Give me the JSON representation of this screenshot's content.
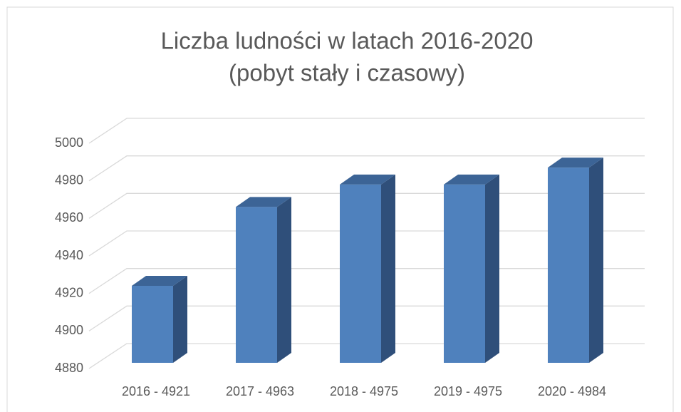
{
  "chart_data": {
    "type": "bar3d",
    "title": [
      "Liczba ludności w latach 2016-2020",
      "(pobyt stały i czasowy)"
    ],
    "categories": [
      "2016 - 4921",
      "2017 - 4963",
      "2018 - 4975",
      "2019 - 4975",
      "2020 - 4984"
    ],
    "values": [
      4921,
      4963,
      4975,
      4975,
      4984
    ],
    "color": "#4f81bd",
    "ylim": [
      4880,
      5000
    ],
    "yticks": [
      4880,
      4900,
      4920,
      4940,
      4960,
      4980,
      5000
    ],
    "grid": true
  }
}
